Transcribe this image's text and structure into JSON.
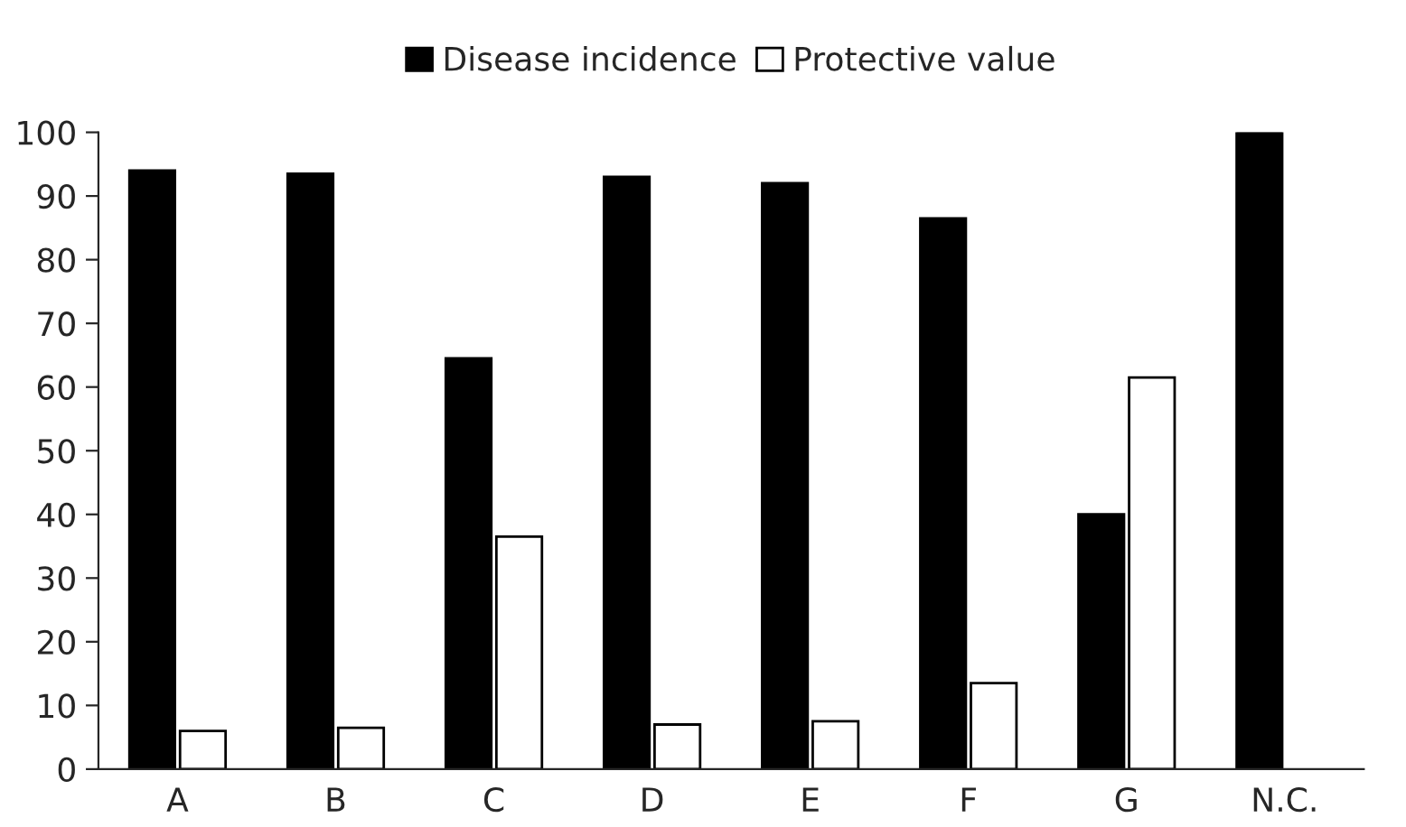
{
  "chart_data": {
    "type": "bar",
    "categories": [
      "A",
      "B",
      "C",
      "D",
      "E",
      "F",
      "G",
      "N.C."
    ],
    "series": [
      {
        "name": "Disease incidence",
        "color": "#000000",
        "values": [
          94,
          93.5,
          64.5,
          93,
          92,
          86.5,
          40,
          100
        ]
      },
      {
        "name": "Protective value",
        "color": "#ffffff",
        "values": [
          6,
          6.5,
          36.5,
          7,
          7.5,
          13.5,
          61.5,
          0
        ]
      }
    ],
    "ylim": [
      0,
      100
    ],
    "yticks": [
      0,
      10,
      20,
      30,
      40,
      50,
      60,
      70,
      80,
      90,
      100
    ],
    "grid": false,
    "legend": "top"
  }
}
